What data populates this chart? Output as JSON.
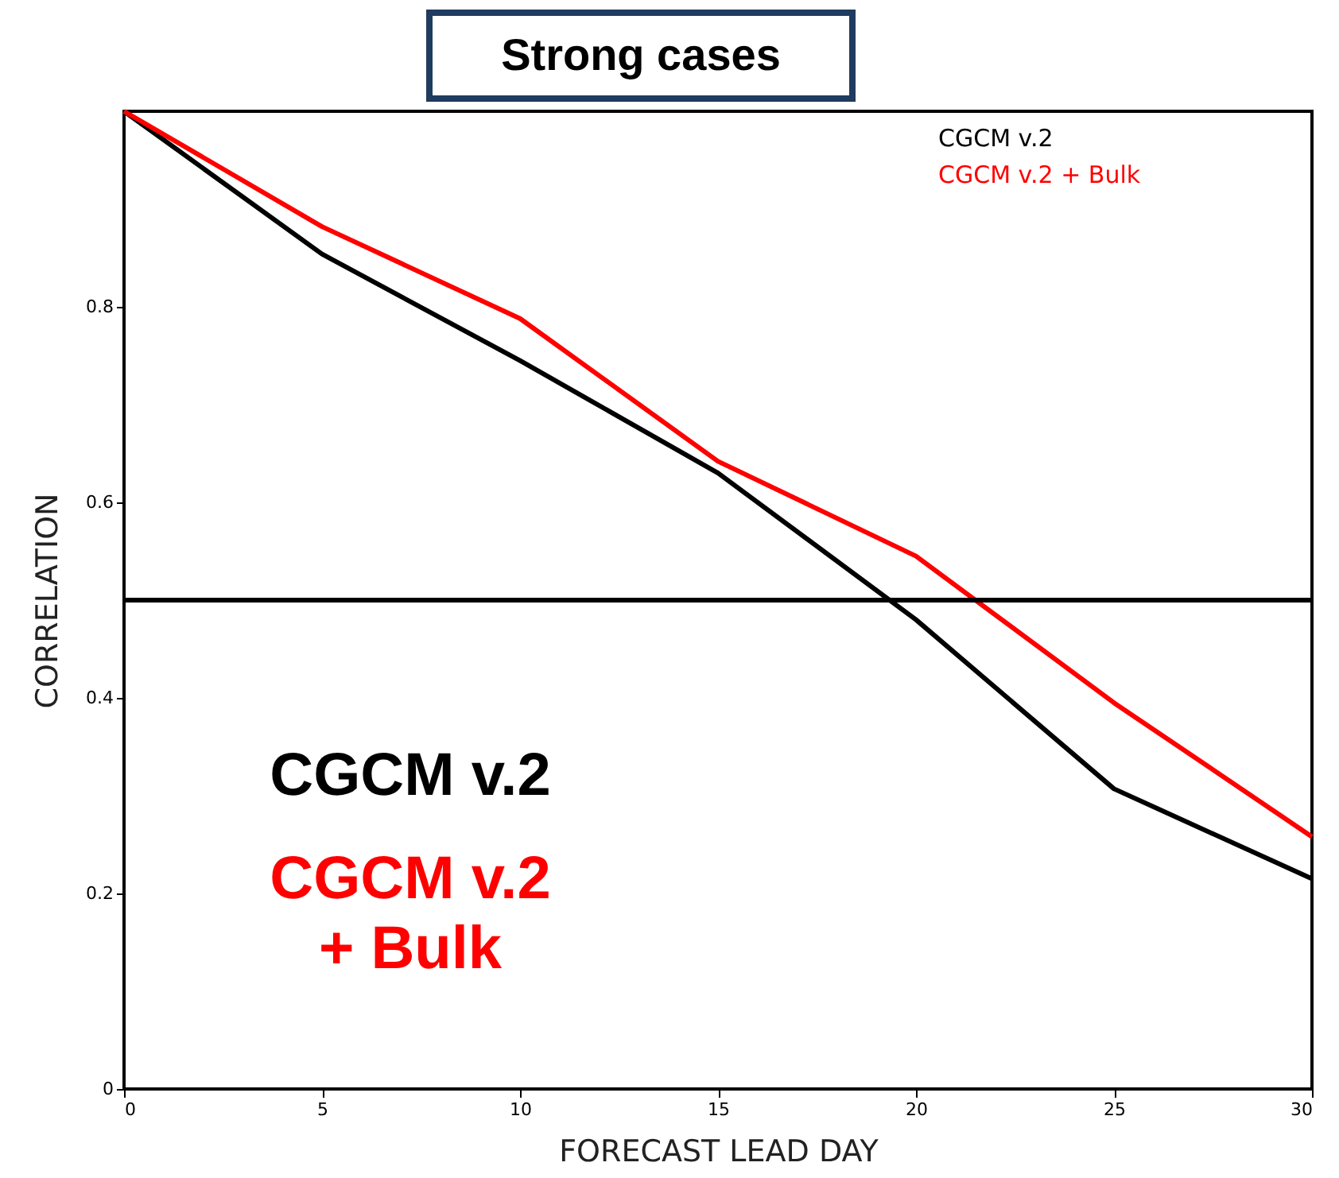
{
  "chart_data": {
    "type": "line",
    "title": "Strong cases",
    "xlabel": "FORECAST LEAD DAY",
    "ylabel": "CORRELATION",
    "x": [
      0,
      5,
      10,
      15,
      20,
      25,
      30
    ],
    "series": [
      {
        "name": "CGCM v.2",
        "color": "#000000",
        "values": [
          1.0,
          0.854,
          0.745,
          0.63,
          0.48,
          0.307,
          0.215
        ]
      },
      {
        "name": "CGCM v.2 + Bulk",
        "color": "#ff0000",
        "values": [
          1.0,
          0.882,
          0.788,
          0.642,
          0.545,
          0.395,
          0.258
        ]
      }
    ],
    "xlim": [
      0,
      30
    ],
    "xticks": [
      0,
      5,
      10,
      15,
      20,
      25,
      30
    ],
    "ylim": [
      0,
      1
    ],
    "yticks": [
      {
        "value": 0,
        "label": "0"
      },
      0.2,
      0.4,
      0.6,
      0.8
    ],
    "ref_lines": [
      {
        "axis": "y",
        "value": 0.5,
        "color": "#000000"
      }
    ],
    "annotations": [
      "CGCM v.2",
      "CGCM v.2\n+ Bulk"
    ],
    "legend": "top right",
    "grid": false,
    "marker": "none",
    "line_style": "solid"
  }
}
